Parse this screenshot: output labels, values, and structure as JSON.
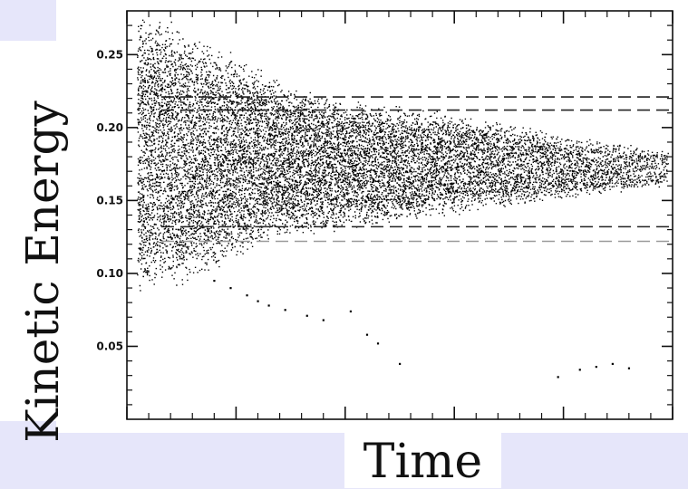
{
  "chart_data": {
    "type": "scatter",
    "title": "",
    "xlabel": "Time",
    "ylabel": "Kinetic Energy",
    "x_tick_labels": [],
    "y_ticks": [
      {
        "value": 0.25,
        "label": "0.25"
      },
      {
        "value": 0.2,
        "label": "0.20"
      },
      {
        "value": 0.15,
        "label": "0.15"
      },
      {
        "value": 0.1,
        "label": "0.10"
      },
      {
        "value": 0.05,
        "label": "0.05"
      }
    ],
    "ylim": [
      0.0,
      0.28
    ],
    "xlim": [
      0,
      10
    ],
    "grid": false,
    "point_color": "#000000",
    "reference_lines": [
      {
        "y": 0.221,
        "style": "dashed",
        "color": "#222222"
      },
      {
        "y": 0.212,
        "style": "dashed",
        "color": "#222222"
      },
      {
        "y": 0.132,
        "style": "dashed",
        "color": "#222222"
      },
      {
        "y": 0.122,
        "style": "dashed",
        "color": "#9a9a9a"
      }
    ],
    "series": [
      {
        "band": [
          {
            "x": 0.2,
            "low": 0.08,
            "high": 0.28
          },
          {
            "x": 0.6,
            "low": 0.09,
            "high": 0.28
          },
          {
            "x": 1.0,
            "low": 0.09,
            "high": 0.27
          },
          {
            "x": 1.5,
            "low": 0.1,
            "high": 0.26
          },
          {
            "x": 2.0,
            "low": 0.11,
            "high": 0.25
          },
          {
            "x": 2.5,
            "low": 0.12,
            "high": 0.24
          },
          {
            "x": 3.0,
            "low": 0.125,
            "high": 0.23
          },
          {
            "x": 4.0,
            "low": 0.13,
            "high": 0.22
          },
          {
            "x": 5.0,
            "low": 0.135,
            "high": 0.215
          },
          {
            "x": 6.0,
            "low": 0.14,
            "high": 0.21
          },
          {
            "x": 7.0,
            "low": 0.145,
            "high": 0.205
          },
          {
            "x": 8.0,
            "low": 0.15,
            "high": 0.195
          },
          {
            "x": 9.0,
            "low": 0.155,
            "high": 0.19
          },
          {
            "x": 9.9,
            "low": 0.16,
            "high": 0.185
          }
        ],
        "outliers": [
          {
            "x": 1.6,
            "y": 0.095
          },
          {
            "x": 1.9,
            "y": 0.09
          },
          {
            "x": 2.2,
            "y": 0.085
          },
          {
            "x": 2.4,
            "y": 0.081
          },
          {
            "x": 2.6,
            "y": 0.078
          },
          {
            "x": 2.9,
            "y": 0.075
          },
          {
            "x": 3.3,
            "y": 0.071
          },
          {
            "x": 3.6,
            "y": 0.068
          },
          {
            "x": 4.1,
            "y": 0.074
          },
          {
            "x": 4.4,
            "y": 0.058
          },
          {
            "x": 4.6,
            "y": 0.052
          },
          {
            "x": 5.0,
            "y": 0.038
          },
          {
            "x": 7.9,
            "y": 0.029
          },
          {
            "x": 8.3,
            "y": 0.034
          },
          {
            "x": 8.6,
            "y": 0.036
          },
          {
            "x": 8.9,
            "y": 0.038
          },
          {
            "x": 9.2,
            "y": 0.035
          }
        ]
      }
    ]
  }
}
